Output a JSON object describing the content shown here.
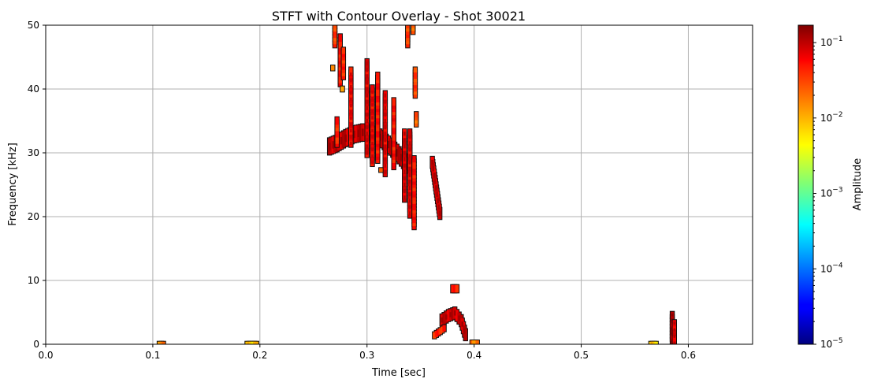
{
  "chart_data": {
    "type": "heatmap",
    "title": "STFT with Contour Overlay - Shot 30021",
    "xlabel": "Time [sec]",
    "ylabel": "Frequency [kHz]",
    "xlim": [
      0,
      0.66
    ],
    "ylim": [
      0,
      50
    ],
    "xticks": [
      {
        "value": 0.0,
        "label": "0.0"
      },
      {
        "value": 0.1,
        "label": "0.1"
      },
      {
        "value": 0.2,
        "label": "0.2"
      },
      {
        "value": 0.3,
        "label": "0.3"
      },
      {
        "value": 0.4,
        "label": "0.4"
      },
      {
        "value": 0.5,
        "label": "0.5"
      },
      {
        "value": 0.6,
        "label": "0.6"
      }
    ],
    "yticks": [
      {
        "value": 0,
        "label": "0"
      },
      {
        "value": 10,
        "label": "10"
      },
      {
        "value": 20,
        "label": "20"
      },
      {
        "value": 30,
        "label": "30"
      },
      {
        "value": 40,
        "label": "40"
      },
      {
        "value": 50,
        "label": "50"
      }
    ],
    "grid": true,
    "colorbar": {
      "label": "Amplitude",
      "scale": "log",
      "colormap": "jet",
      "min": 1e-05,
      "max": 0.17,
      "ticks": [
        {
          "exp": -5,
          "base": "10",
          "power": "−5"
        },
        {
          "exp": -4,
          "base": "10",
          "power": "−4"
        },
        {
          "exp": -3,
          "base": "10",
          "power": "−3"
        },
        {
          "exp": -2,
          "base": "10",
          "power": "−2"
        },
        {
          "exp": -1,
          "base": "10",
          "power": "−1"
        }
      ]
    },
    "regions": [
      {
        "name": "chirp-main",
        "t": [
          0.265,
          0.272,
          0.28,
          0.288,
          0.296,
          0.304,
          0.312,
          0.32,
          0.328,
          0.336,
          0.342
        ],
        "f": [
          31.0,
          31.5,
          32.3,
          32.9,
          33.2,
          33.0,
          32.4,
          31.3,
          30.0,
          28.5,
          27.5
        ],
        "width": 1.3,
        "amp": 0.12
      },
      {
        "name": "spike-a",
        "t": [
          0.272,
          0.272
        ],
        "f": [
          31.5,
          35.0
        ],
        "width": 0.6,
        "amp": 0.05
      },
      {
        "name": "spike-b",
        "t": [
          0.27,
          0.27
        ],
        "f": [
          47.0,
          50.0
        ],
        "width": 0.5,
        "amp": 0.04
      },
      {
        "name": "spike-c",
        "t": [
          0.275,
          0.275
        ],
        "f": [
          41.0,
          48.0
        ],
        "width": 0.6,
        "amp": 0.06
      },
      {
        "name": "spike-d",
        "t": [
          0.278,
          0.278
        ],
        "f": [
          42.0,
          46.0
        ],
        "width": 0.5,
        "amp": 0.05
      },
      {
        "name": "spike-e",
        "t": [
          0.285,
          0.285
        ],
        "f": [
          31.5,
          42.8
        ],
        "width": 0.6,
        "amp": 0.07
      },
      {
        "name": "spike-f",
        "t": [
          0.3,
          0.3
        ],
        "f": [
          30.0,
          44.0
        ],
        "width": 0.7,
        "amp": 0.08
      },
      {
        "name": "spike-g",
        "t": [
          0.305,
          0.305
        ],
        "f": [
          28.5,
          40.0
        ],
        "width": 0.6,
        "amp": 0.07
      },
      {
        "name": "spike-h",
        "t": [
          0.31,
          0.31
        ],
        "f": [
          29.0,
          42.0
        ],
        "width": 0.6,
        "amp": 0.06
      },
      {
        "name": "spike-i",
        "t": [
          0.317,
          0.317
        ],
        "f": [
          27.0,
          39.0
        ],
        "width": 0.7,
        "amp": 0.08
      },
      {
        "name": "spike-j",
        "t": [
          0.325,
          0.325
        ],
        "f": [
          28.0,
          38.0
        ],
        "width": 0.6,
        "amp": 0.06
      },
      {
        "name": "spike-k",
        "t": [
          0.335,
          0.335
        ],
        "f": [
          23.0,
          33.0
        ],
        "width": 0.7,
        "amp": 0.09
      },
      {
        "name": "spike-l",
        "t": [
          0.34,
          0.34
        ],
        "f": [
          20.5,
          33.0
        ],
        "width": 0.7,
        "amp": 0.08
      },
      {
        "name": "spike-m",
        "t": [
          0.344,
          0.344
        ],
        "f": [
          18.5,
          29.0
        ],
        "width": 0.5,
        "amp": 0.06
      },
      {
        "name": "spike-n",
        "t": [
          0.338,
          0.338
        ],
        "f": [
          47.0,
          50.0
        ],
        "width": 0.5,
        "amp": 0.04
      },
      {
        "name": "spike-o",
        "t": [
          0.345,
          0.345
        ],
        "f": [
          39.0,
          43.0
        ],
        "width": 0.4,
        "amp": 0.04
      },
      {
        "name": "spike-p",
        "t": [
          0.346,
          0.346
        ],
        "f": [
          34.5,
          36.0
        ],
        "width": 0.4,
        "amp": 0.03
      },
      {
        "name": "spike-q",
        "t": [
          0.343,
          0.343
        ],
        "f": [
          49.0,
          50.0
        ],
        "width": 0.4,
        "amp": 0.03
      },
      {
        "name": "diag-363",
        "t": [
          0.361,
          0.368
        ],
        "f": [
          28.5,
          20.5
        ],
        "width": 0.9,
        "amp": 0.1
      },
      {
        "name": "blob-8kHz",
        "t": [
          0.38,
          0.384
        ],
        "f": [
          8.7,
          8.7
        ],
        "width": 0.6,
        "amp": 0.05
      },
      {
        "name": "arch-4kHz",
        "t": [
          0.37,
          0.376,
          0.382,
          0.388,
          0.392
        ],
        "f": [
          3.8,
          4.5,
          4.9,
          3.7,
          1.5
        ],
        "width": 0.9,
        "amp": 0.11
      },
      {
        "name": "low-365",
        "t": [
          0.363,
          0.372
        ],
        "f": [
          1.4,
          2.5
        ],
        "width": 0.5,
        "amp": 0.05
      },
      {
        "name": "tail-400",
        "t": [
          0.398,
          0.403
        ],
        "f": [
          0.3,
          0.3
        ],
        "width": 0.3,
        "amp": 0.02
      },
      {
        "name": "spike-585",
        "t": [
          0.585,
          0.585
        ],
        "f": [
          0.5,
          4.6
        ],
        "width": 0.5,
        "amp": 0.13
      },
      {
        "name": "spike-587",
        "t": [
          0.587,
          0.587
        ],
        "f": [
          0.2,
          3.3
        ],
        "width": 0.5,
        "amp": 0.09
      },
      {
        "name": "base-568",
        "t": [
          0.565,
          0.57
        ],
        "f": [
          0.1,
          0.1
        ],
        "width": 0.2,
        "amp": 0.01
      },
      {
        "name": "base-108",
        "t": [
          0.106,
          0.11
        ],
        "f": [
          0.1,
          0.1
        ],
        "width": 0.25,
        "amp": 0.02
      },
      {
        "name": "base-192",
        "t": [
          0.188,
          0.197
        ],
        "f": [
          0.1,
          0.1
        ],
        "width": 0.2,
        "amp": 0.01
      },
      {
        "name": "dot-43",
        "t": [
          0.268,
          0.268
        ],
        "f": [
          43.3,
          43.3
        ],
        "width": 0.4,
        "amp": 0.02
      },
      {
        "name": "dot-40",
        "t": [
          0.277,
          0.277
        ],
        "f": [
          40.0,
          40.0
        ],
        "width": 0.4,
        "amp": 0.02
      },
      {
        "name": "dot-27",
        "t": [
          0.313,
          0.313
        ],
        "f": [
          27.3,
          27.3
        ],
        "width": 0.3,
        "amp": 0.02
      }
    ]
  }
}
